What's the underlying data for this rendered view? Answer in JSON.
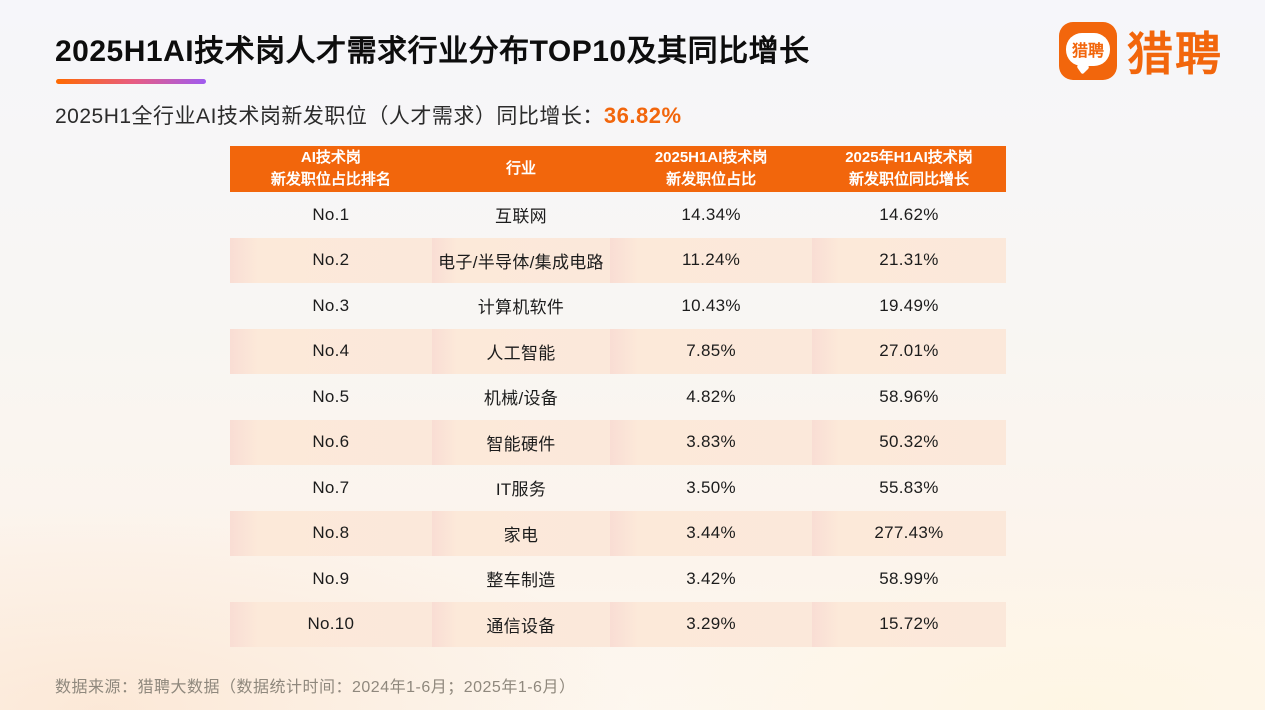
{
  "page": {
    "title": "2025H1AI技术岗人才需求行业分布TOP10及其同比增长",
    "subtitle_prefix": "2025H1全行业AI技术岗新发职位（人才需求）同比增长：",
    "subtitle_value": "36.82%",
    "footer": "数据来源：猎聘大数据（数据统计时间：2024年1-6月；2025年1-6月）"
  },
  "logo": {
    "brand": "猎聘",
    "icon_text": "猎聘"
  },
  "colors": {
    "accent_orange": "#F2660C",
    "header_bg": "#F2660C",
    "row_alt_bg": "#FBE8DA",
    "underline_start": "#FF6A00",
    "underline_mid": "#E75C83",
    "underline_end": "#9F5BF0",
    "title_text": "#0D0D0D",
    "footer_text": "#8F887D"
  },
  "table": {
    "headers": [
      {
        "line1": "AI技术岗",
        "line2": "新发职位占比排名"
      },
      {
        "line1": "行业",
        "line2": ""
      },
      {
        "line1": "2025H1AI技术岗",
        "line2": "新发职位占比"
      },
      {
        "line1": "2025年H1AI技术岗",
        "line2": "新发职位同比增长"
      }
    ],
    "rows": [
      {
        "rank": "No.1",
        "industry": "互联网",
        "share": "14.34%",
        "growth": "14.62%"
      },
      {
        "rank": "No.2",
        "industry": "电子/半导体/集成电路",
        "share": "11.24%",
        "growth": "21.31%"
      },
      {
        "rank": "No.3",
        "industry": "计算机软件",
        "share": "10.43%",
        "growth": "19.49%"
      },
      {
        "rank": "No.4",
        "industry": "人工智能",
        "share": "7.85%",
        "growth": "27.01%"
      },
      {
        "rank": "No.5",
        "industry": "机械/设备",
        "share": "4.82%",
        "growth": "58.96%"
      },
      {
        "rank": "No.6",
        "industry": "智能硬件",
        "share": "3.83%",
        "growth": "50.32%"
      },
      {
        "rank": "No.7",
        "industry": "IT服务",
        "share": "3.50%",
        "growth": "55.83%"
      },
      {
        "rank": "No.8",
        "industry": "家电",
        "share": "3.44%",
        "growth": "277.43%"
      },
      {
        "rank": "No.9",
        "industry": "整车制造",
        "share": "3.42%",
        "growth": "58.99%"
      },
      {
        "rank": "No.10",
        "industry": "通信设备",
        "share": "3.29%",
        "growth": "15.72%"
      }
    ]
  },
  "chart_data": {
    "type": "table",
    "title": "2025H1AI技术岗人才需求行业分布TOP10及其同比增长",
    "subtitle": "2025H1全行业AI技术岗新发职位（人才需求）同比增长：36.82%",
    "overall_yoy_growth_pct": 36.82,
    "columns": [
      "AI技术岗新发职位占比排名",
      "行业",
      "2025H1AI技术岗新发职位占比",
      "2025年H1AI技术岗新发职位同比增长"
    ],
    "categories": [
      "互联网",
      "电子/半导体/集成电路",
      "计算机软件",
      "人工智能",
      "机械/设备",
      "智能硬件",
      "IT服务",
      "家电",
      "整车制造",
      "通信设备"
    ],
    "series": [
      {
        "name": "2025H1AI技术岗新发职位占比(%)",
        "values": [
          14.34,
          11.24,
          10.43,
          7.85,
          4.82,
          3.83,
          3.5,
          3.44,
          3.42,
          3.29
        ]
      },
      {
        "name": "2025年H1AI技术岗新发职位同比增长(%)",
        "values": [
          14.62,
          21.31,
          19.49,
          27.01,
          58.96,
          50.32,
          55.83,
          277.43,
          58.99,
          15.72
        ]
      }
    ],
    "source_note": "数据来源：猎聘大数据（数据统计时间：2024年1-6月；2025年1-6月）"
  }
}
